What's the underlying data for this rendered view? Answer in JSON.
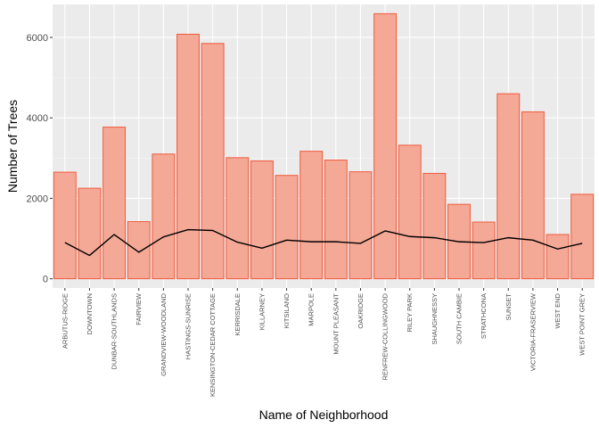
{
  "chart_data": {
    "type": "bar",
    "title": "",
    "xlabel": "Name of Neighborhood",
    "ylabel": "Number of Trees",
    "ylim": [
      -230,
      6820
    ],
    "yticks": [
      0,
      2000,
      4000,
      6000
    ],
    "ytick_labels": [
      "0",
      "2000",
      "4000",
      "6000"
    ],
    "grid": true,
    "legend": "none",
    "categories": [
      "ARBUTUS-RIDGE",
      "DOWNTOWN",
      "DUNBAR-SOUTHLANDS",
      "FAIRVIEW",
      "GRANDVIEW-WOODLAND",
      "HASTINGS-SUNRISE",
      "KENSINGTON-CEDAR COTTAGE",
      "KERRISDALE",
      "KILLARNEY",
      "KITSILANO",
      "MARPOLE",
      "MOUNT PLEASANT",
      "OAKRIDGE",
      "RENFREW-COLLINGWOOD",
      "RILEY PARK",
      "SHAUGHNESSY",
      "SOUTH CAMBIE",
      "STRATHCONA",
      "SUNSET",
      "VICTORIA-FRASERVIEW",
      "WEST END",
      "WEST POINT GREY"
    ],
    "series": [
      {
        "type": "bar",
        "values": [
          2650,
          2250,
          3770,
          1420,
          3100,
          6080,
          5850,
          3010,
          2930,
          2570,
          3170,
          2950,
          2660,
          6590,
          3320,
          2620,
          1850,
          1410,
          4600,
          4150,
          1100,
          2100
        ]
      },
      {
        "type": "line",
        "values": [
          900,
          580,
          1100,
          660,
          1040,
          1220,
          1200,
          910,
          760,
          960,
          920,
          920,
          880,
          1190,
          1050,
          1020,
          920,
          900,
          1020,
          960,
          740,
          880
        ]
      }
    ],
    "colors": {
      "panel": "#ebebeb",
      "grid_major": "#ffffff",
      "bar_fill": "#f4a896",
      "bar_stroke": "#f05a3c",
      "line": "#000000",
      "tick": "#333333"
    }
  }
}
